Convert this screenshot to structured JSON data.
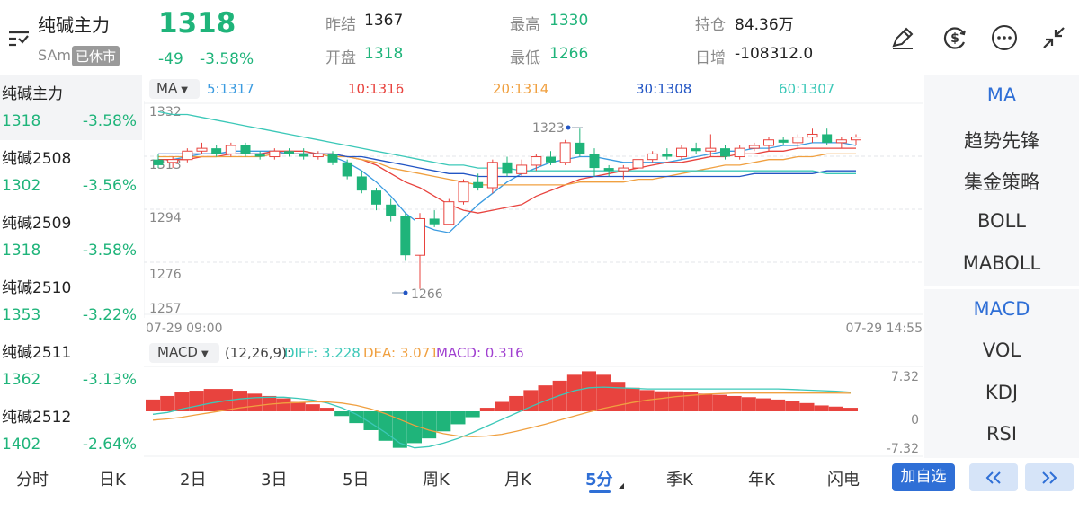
{
  "header": {
    "name": "纯碱主力",
    "code": "SAm",
    "status_badge": "已休市",
    "price": "1318",
    "change": "-49",
    "change_pct": "-3.58%",
    "stats": {
      "prev_settle_label": "昨结",
      "prev_settle": "1367",
      "open_label": "开盘",
      "open": "1318",
      "high_label": "最高",
      "high": "1330",
      "low_label": "最低",
      "low": "1266",
      "oi_label": "持仓",
      "oi": "84.36万",
      "daily_inc_label": "日增",
      "daily_inc": "-108312.0"
    }
  },
  "watchlist": [
    {
      "name": "纯碱主力",
      "price": "1318",
      "pct": "-3.58%"
    },
    {
      "name": "纯碱2508",
      "price": "1302",
      "pct": "-3.56%"
    },
    {
      "name": "纯碱2509",
      "price": "1318",
      "pct": "-3.58%"
    },
    {
      "name": "纯碱2510",
      "price": "1353",
      "pct": "-3.22%"
    },
    {
      "name": "纯碱2511",
      "price": "1362",
      "pct": "-3.13%"
    },
    {
      "name": "纯碱2512",
      "price": "1402",
      "pct": "-2.64%"
    }
  ],
  "main_chart": {
    "ma_selector": "MA",
    "ma_legend": [
      {
        "text": "5:1317",
        "color": "#3b9be0"
      },
      {
        "text": "10:1316",
        "color": "#e8433e"
      },
      {
        "text": "20:1314",
        "color": "#f0a040"
      },
      {
        "text": "30:1308",
        "color": "#2255c4"
      },
      {
        "text": "60:1307",
        "color": "#3cc8b8"
      }
    ],
    "y_ticks": [
      "1332",
      "1313",
      "1294",
      "1276",
      "1257"
    ],
    "x_start": "07-29 09:00",
    "x_end": "07-29 14:55",
    "high_mark": "1323",
    "low_mark": "1266"
  },
  "macd_chart": {
    "selector": "MACD",
    "params": "(12,26,9):",
    "diff_label": "DIFF: 3.228",
    "dea_label": "DEA: 3.071",
    "macd_label": "MACD: 0.316",
    "y_ticks": [
      "7.32",
      "0",
      "-7.32"
    ]
  },
  "indicators_top": [
    "MA",
    "趋势先锋",
    "集金策略",
    "BOLL",
    "MABOLL"
  ],
  "indicators_bottom": [
    "MACD",
    "VOL",
    "KDJ",
    "RSI"
  ],
  "bottom_tabs": [
    "分时",
    "日K",
    "2日",
    "3日",
    "5日",
    "周K",
    "月K",
    "5分",
    "季K",
    "年K",
    "闪电"
  ],
  "add_watch_label": "加自选",
  "chart_data": [
    {
      "type": "candlestick",
      "title": "",
      "ylim": [
        1257,
        1332
      ],
      "y_ticks": [
        1332,
        1313,
        1294,
        1276,
        1257
      ],
      "candles": [
        [
          1312,
          1314,
          1309,
          1310
        ],
        [
          1311,
          1313,
          1309,
          1312
        ],
        [
          1312,
          1316,
          1311,
          1315
        ],
        [
          1315,
          1318,
          1314,
          1316
        ],
        [
          1316,
          1317,
          1313,
          1314
        ],
        [
          1314,
          1318,
          1313,
          1317
        ],
        [
          1317,
          1318,
          1313,
          1314
        ],
        [
          1314,
          1315,
          1312,
          1313
        ],
        [
          1313,
          1316,
          1312,
          1315
        ],
        [
          1315,
          1316,
          1313,
          1314
        ],
        [
          1314,
          1316,
          1312,
          1313
        ],
        [
          1313,
          1315,
          1312,
          1314
        ],
        [
          1314,
          1315,
          1310,
          1311
        ],
        [
          1311,
          1312,
          1305,
          1306
        ],
        [
          1306,
          1308,
          1300,
          1301
        ],
        [
          1301,
          1302,
          1294,
          1296
        ],
        [
          1296,
          1298,
          1290,
          1292
        ],
        [
          1292,
          1293,
          1276,
          1278
        ],
        [
          1278,
          1293,
          1266,
          1291
        ],
        [
          1291,
          1294,
          1288,
          1289
        ],
        [
          1289,
          1298,
          1289,
          1297
        ],
        [
          1297,
          1305,
          1296,
          1304
        ],
        [
          1304,
          1307,
          1301,
          1302
        ],
        [
          1302,
          1312,
          1300,
          1311
        ],
        [
          1311,
          1313,
          1306,
          1307
        ],
        [
          1307,
          1312,
          1306,
          1310
        ],
        [
          1310,
          1314,
          1308,
          1313
        ],
        [
          1313,
          1315,
          1310,
          1311
        ],
        [
          1311,
          1319,
          1310,
          1318
        ],
        [
          1318,
          1323,
          1313,
          1314
        ],
        [
          1314,
          1316,
          1306,
          1309
        ],
        [
          1309,
          1310,
          1306,
          1308
        ],
        [
          1308,
          1310,
          1305,
          1309
        ],
        [
          1309,
          1313,
          1308,
          1312
        ],
        [
          1312,
          1315,
          1311,
          1314
        ],
        [
          1314,
          1316,
          1312,
          1313
        ],
        [
          1313,
          1317,
          1312,
          1316
        ],
        [
          1316,
          1318,
          1314,
          1315
        ],
        [
          1315,
          1321,
          1313,
          1316
        ],
        [
          1316,
          1317,
          1312,
          1313
        ],
        [
          1313,
          1317,
          1312,
          1316
        ],
        [
          1316,
          1318,
          1315,
          1317
        ],
        [
          1317,
          1320,
          1315,
          1319
        ],
        [
          1319,
          1320,
          1317,
          1318
        ],
        [
          1318,
          1321,
          1316,
          1320
        ],
        [
          1320,
          1323,
          1318,
          1321
        ],
        [
          1321,
          1323,
          1317,
          1318
        ],
        [
          1318,
          1320,
          1316,
          1319
        ],
        [
          1319,
          1321,
          1317,
          1320
        ]
      ],
      "ma_series": [
        {
          "name": "5",
          "color": "#3b9be0",
          "values": [
            1312,
            1312,
            1313,
            1314,
            1314,
            1315,
            1315,
            1315,
            1315,
            1314,
            1314,
            1314,
            1313,
            1311,
            1308,
            1304,
            1299,
            1293,
            1289,
            1287,
            1286,
            1291,
            1296,
            1300,
            1304,
            1307,
            1309,
            1311,
            1312,
            1313,
            1313,
            1312,
            1311,
            1311,
            1311,
            1311,
            1312,
            1313,
            1314,
            1315,
            1315,
            1316,
            1316,
            1317,
            1317,
            1318,
            1318,
            1318,
            1317
          ]
        },
        {
          "name": "10",
          "color": "#e8433e",
          "values": [
            1312,
            1312,
            1312,
            1313,
            1313,
            1314,
            1314,
            1314,
            1315,
            1315,
            1315,
            1314,
            1314,
            1313,
            1312,
            1310,
            1307,
            1304,
            1302,
            1299,
            1296,
            1294,
            1293,
            1294,
            1295,
            1296,
            1299,
            1301,
            1303,
            1305,
            1306,
            1307,
            1308,
            1309,
            1310,
            1311,
            1311,
            1312,
            1313,
            1313,
            1314,
            1314,
            1315,
            1315,
            1316,
            1316,
            1316,
            1316,
            1316
          ]
        },
        {
          "name": "20",
          "color": "#f0a040",
          "values": [
            1313,
            1313,
            1313,
            1313,
            1313,
            1313,
            1313,
            1313,
            1314,
            1314,
            1314,
            1314,
            1313,
            1313,
            1312,
            1311,
            1309,
            1308,
            1307,
            1306,
            1305,
            1304,
            1303,
            1303,
            1303,
            1303,
            1303,
            1303,
            1303,
            1304,
            1304,
            1304,
            1304,
            1305,
            1305,
            1306,
            1307,
            1308,
            1309,
            1310,
            1310,
            1311,
            1312,
            1312,
            1313,
            1313,
            1314,
            1314,
            1314
          ]
        },
        {
          "name": "30",
          "color": "#2255c4",
          "values": [
            1314,
            1314,
            1314,
            1314,
            1314,
            1314,
            1314,
            1314,
            1314,
            1314,
            1314,
            1314,
            1314,
            1313,
            1313,
            1312,
            1311,
            1310,
            1309,
            1308,
            1307,
            1307,
            1306,
            1306,
            1306,
            1306,
            1306,
            1306,
            1306,
            1306,
            1306,
            1306,
            1306,
            1306,
            1306,
            1306,
            1306,
            1306,
            1306,
            1306,
            1306,
            1307,
            1307,
            1307,
            1307,
            1307,
            1308,
            1308,
            1308
          ]
        },
        {
          "name": "60",
          "color": "#3cc8b8",
          "values": [
            1329,
            1328,
            1328,
            1327,
            1326,
            1325,
            1324,
            1323,
            1322,
            1321,
            1320,
            1319,
            1318,
            1317,
            1316,
            1315,
            1314,
            1313,
            1312,
            1311,
            1310,
            1310,
            1309,
            1309,
            1309,
            1308,
            1308,
            1308,
            1308,
            1308,
            1308,
            1308,
            1308,
            1308,
            1308,
            1308,
            1308,
            1308,
            1308,
            1308,
            1308,
            1308,
            1308,
            1308,
            1308,
            1308,
            1307,
            1307,
            1307
          ]
        }
      ]
    },
    {
      "type": "bar",
      "title": "MACD",
      "ylim": [
        -7.32,
        7.32
      ],
      "macd_hist": [
        2.0,
        2.6,
        3.2,
        3.5,
        3.8,
        3.8,
        3.5,
        3.0,
        2.6,
        2.2,
        1.6,
        1.2,
        0.6,
        -0.8,
        -2.0,
        -3.2,
        -5.0,
        -6.2,
        -5.4,
        -4.6,
        -3.4,
        -2.2,
        -1.0,
        0.6,
        1.6,
        2.6,
        3.6,
        4.4,
        5.2,
        6.2,
        6.8,
        6.2,
        5.0,
        4.0,
        3.6,
        3.4,
        3.4,
        3.2,
        3.0,
        2.8,
        2.6,
        2.4,
        2.2,
        2.0,
        1.7,
        1.4,
        1.0,
        0.8,
        0.6
      ],
      "diff": [
        -0.5,
        -0.2,
        0.4,
        0.9,
        1.4,
        1.8,
        2.1,
        2.3,
        2.4,
        2.4,
        2.2,
        1.9,
        1.4,
        0.6,
        -0.5,
        -2.0,
        -3.6,
        -5.4,
        -6.2,
        -6.0,
        -5.4,
        -4.6,
        -3.6,
        -2.5,
        -1.4,
        -0.3,
        0.8,
        1.8,
        2.7,
        3.5,
        4.0,
        4.1,
        4.0,
        3.9,
        3.8,
        3.8,
        3.8,
        3.8,
        3.8,
        3.8,
        3.8,
        3.8,
        3.8,
        3.8,
        3.7,
        3.6,
        3.5,
        3.4,
        3.23
      ],
      "dea": [
        -1.5,
        -1.3,
        -1.0,
        -0.6,
        -0.2,
        0.2,
        0.6,
        0.9,
        1.2,
        1.4,
        1.5,
        1.6,
        1.6,
        1.4,
        1.0,
        0.4,
        -0.4,
        -1.4,
        -2.4,
        -3.2,
        -3.8,
        -4.2,
        -4.3,
        -4.2,
        -3.9,
        -3.4,
        -2.8,
        -2.2,
        -1.5,
        -0.8,
        -0.1,
        0.5,
        1.0,
        1.5,
        1.9,
        2.2,
        2.5,
        2.7,
        2.9,
        3.0,
        3.1,
        3.1,
        3.1,
        3.1,
        3.1,
        3.1,
        3.1,
        3.1,
        3.07
      ]
    }
  ]
}
